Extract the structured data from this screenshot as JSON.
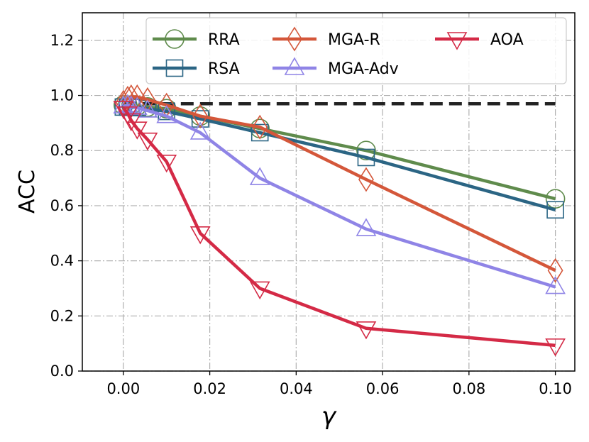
{
  "chart_data": {
    "type": "line",
    "title": "",
    "xlabel": "γ",
    "ylabel": "ACC",
    "xlim": [
      -0.0095,
      0.1045
    ],
    "ylim": [
      0.0,
      1.3
    ],
    "xticks": [
      0.0,
      0.02,
      0.04,
      0.06,
      0.08,
      0.1
    ],
    "xtick_labels": [
      "0.00",
      "0.02",
      "0.04",
      "0.06",
      "0.08",
      "0.10"
    ],
    "yticks": [
      0.0,
      0.2,
      0.4,
      0.6,
      0.8,
      1.0,
      1.2
    ],
    "ytick_labels": [
      "0.0",
      "0.2",
      "0.4",
      "0.6",
      "0.8",
      "1.0",
      "1.2"
    ],
    "grid": true,
    "legend_position": "top-right",
    "x": [
      0.0,
      0.001,
      0.0018,
      0.0032,
      0.0056,
      0.01,
      0.0178,
      0.0316,
      0.0562,
      0.1
    ],
    "series": [
      {
        "name": "RRA",
        "color": "#5f8b4c",
        "marker": "circle",
        "values": [
          0.965,
          0.965,
          0.965,
          0.962,
          0.958,
          0.952,
          0.925,
          0.88,
          0.8,
          0.625
        ]
      },
      {
        "name": "RSA",
        "color": "#2b6584",
        "marker": "square",
        "values": [
          0.958,
          0.958,
          0.957,
          0.956,
          0.952,
          0.942,
          0.915,
          0.865,
          0.775,
          0.585
        ]
      },
      {
        "name": "MGA-R",
        "color": "#d4573a",
        "marker": "diamond",
        "values": [
          0.975,
          0.99,
          0.995,
          0.995,
          0.985,
          0.965,
          0.925,
          0.885,
          0.695,
          0.365
        ]
      },
      {
        "name": "MGA-Adv",
        "color": "#8f84e6",
        "marker": "triangle-up",
        "values": [
          0.96,
          0.965,
          0.96,
          0.955,
          0.945,
          0.925,
          0.865,
          0.7,
          0.515,
          0.305
        ]
      },
      {
        "name": "AOA",
        "color": "#d42a46",
        "marker": "triangle-down",
        "values": [
          0.955,
          0.935,
          0.91,
          0.88,
          0.84,
          0.76,
          0.5,
          0.3,
          0.155,
          0.093
        ]
      }
    ],
    "reference_line": {
      "y": 0.97,
      "x_start": 0.0,
      "x_end": 0.1,
      "style": "dashed",
      "color": "#222222"
    }
  }
}
